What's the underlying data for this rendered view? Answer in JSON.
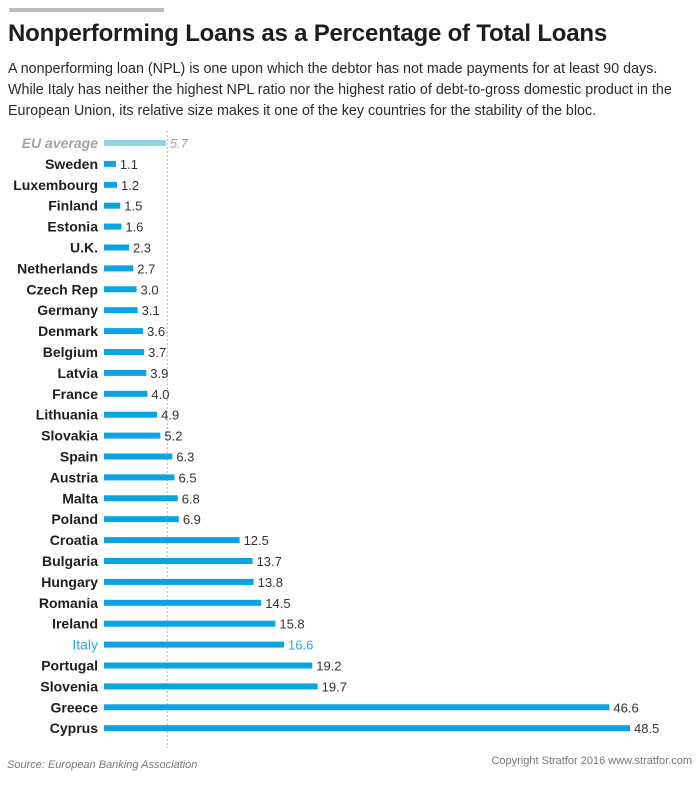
{
  "header": {
    "title": "Nonperforming Loans as a Percentage of Total Loans",
    "subtitle": "A nonperforming loan (NPL) is one upon which the debtor has not made payments for at least 90 days. While Italy has neither the highest NPL ratio nor the highest ratio of debt-to-gross domestic product in the European Union, its relative size makes it one of the key countries for the stability of the bloc."
  },
  "footer": {
    "source": "Source: European Banking Association",
    "copyright": "Copyright Stratfor 2016   www.stratfor.com"
  },
  "colors": {
    "bar": "#0aa4e4",
    "highlight_text": "#29a9d8",
    "eu_average_bar": "#8dd3e2",
    "eu_average_text": "#a3a3a3",
    "reference_line": "#b8b8b8"
  },
  "chart_data": {
    "type": "bar",
    "orientation": "horizontal",
    "title": "Nonperforming Loans as a Percentage of Total Loans",
    "categories": [
      "EU average",
      "Sweden",
      "Luxembourg",
      "Finland",
      "Estonia",
      "U.K.",
      "Netherlands",
      "Czech Rep",
      "Germany",
      "Denmark",
      "Belgium",
      "Latvia",
      "France",
      "Lithuania",
      "Slovakia",
      "Spain",
      "Austria",
      "Malta",
      "Poland",
      "Croatia",
      "Bulgaria",
      "Hungary",
      "Romania",
      "Ireland",
      "Italy",
      "Portugal",
      "Slovenia",
      "Greece",
      "Cyprus"
    ],
    "values": [
      5.7,
      1.1,
      1.2,
      1.5,
      1.6,
      2.3,
      2.7,
      3.0,
      3.1,
      3.6,
      3.7,
      3.9,
      4.0,
      4.9,
      5.2,
      6.3,
      6.5,
      6.8,
      6.9,
      12.5,
      13.7,
      13.8,
      14.5,
      15.8,
      16.6,
      19.2,
      19.7,
      46.6,
      48.5
    ],
    "value_labels": [
      "5.7",
      "1.1",
      "1.2",
      "1.5",
      "1.6",
      "2.3",
      "2.7",
      "3.0",
      "3.1",
      "3.6",
      "3.7",
      "3.9",
      "4.0",
      "4.9",
      "5.2",
      "6.3",
      "6.5",
      "6.8",
      "6.9",
      "12.5",
      "13.7",
      "13.8",
      "14.5",
      "15.8",
      "16.6",
      "19.2",
      "19.7",
      "46.6",
      "48.5"
    ],
    "highlighted": [
      "Italy"
    ],
    "reference_category": "EU average",
    "reference_line_value": 5.7,
    "xlim": [
      0,
      48.5
    ],
    "grid": false,
    "legend": "none"
  }
}
